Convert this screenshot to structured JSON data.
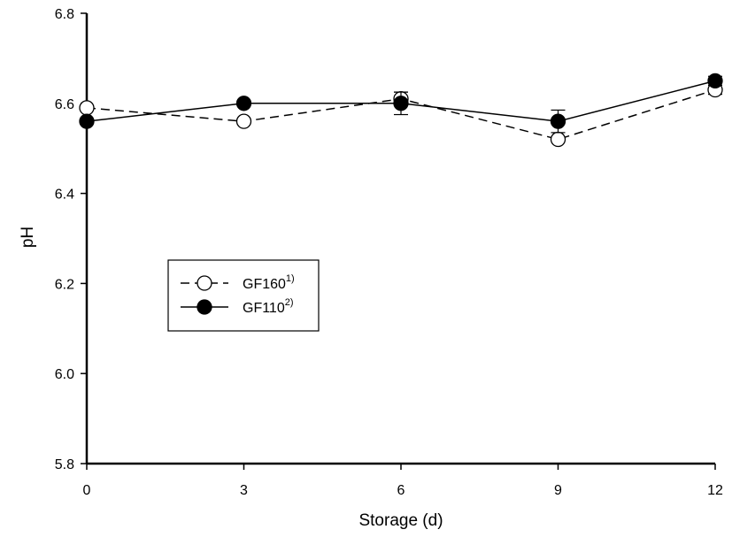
{
  "chart_data": {
    "type": "line",
    "title": "",
    "xlabel": "Storage (d)",
    "ylabel": "pH",
    "x": [
      0,
      3,
      6,
      9,
      12
    ],
    "xlim": [
      0,
      12
    ],
    "ylim": [
      5.8,
      6.8
    ],
    "x_ticks": [
      "0",
      "3",
      "6",
      "9",
      "12"
    ],
    "y_ticks": [
      "5.8",
      "6.0",
      "6.2",
      "6.4",
      "6.6",
      "6.8"
    ],
    "grid": false,
    "legend_position": "center-left",
    "series": [
      {
        "name": "GF160",
        "name_sup": "1)",
        "values": [
          6.59,
          6.56,
          6.61,
          6.52,
          6.63
        ],
        "errors": [
          0,
          0,
          0.015,
          0,
          0.01
        ],
        "marker": "open-circle",
        "line_style": "dashed",
        "color": "#000000"
      },
      {
        "name": "GF110",
        "name_sup": "2)",
        "values": [
          6.56,
          6.6,
          6.6,
          6.56,
          6.65
        ],
        "errors": [
          0,
          0,
          0.025,
          0.025,
          0.01
        ],
        "marker": "filled-circle",
        "line_style": "solid",
        "color": "#000000"
      }
    ]
  }
}
